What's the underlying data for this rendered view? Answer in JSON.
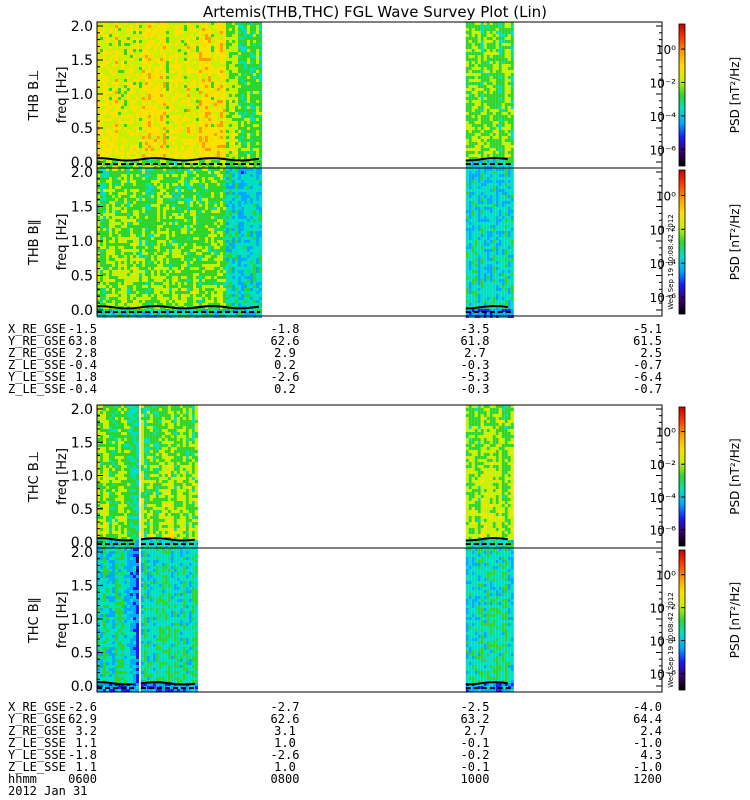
{
  "title": "Artemis(THB,THC) FGL Wave Survey Plot (Lin)",
  "stamp": "Wed Sep 19 00:08:42 2012",
  "colorbar": {
    "label": "PSD [nT²/Hz]",
    "tick_labels": [
      "10⁰",
      "10⁻²",
      "10⁻⁴",
      "10⁻⁶"
    ],
    "tick_exponents": [
      0,
      -2,
      -4,
      -6
    ],
    "range_exponent": [
      -7,
      1.5
    ],
    "colors": [
      "#000000",
      "#3a0070",
      "#1a1aff",
      "#00a8ff",
      "#00e0c0",
      "#2ed52e",
      "#c8f000",
      "#ffe000",
      "#ff9c00",
      "#ff3c00",
      "#c80000"
    ]
  },
  "chart_data": [
    {
      "type": "heatmap",
      "panel": "THB B⊥",
      "ylabel": "THB B⊥",
      "yunit": "freq [Hz]",
      "ylim": [
        0,
        2.0
      ],
      "yticks": [
        "0.0",
        "0.5",
        "1.0",
        "1.5",
        "2.0"
      ],
      "xlim_hhmm": [
        "0600",
        "1200"
      ],
      "data_intervals_hhmm": [
        [
          "0600",
          "0744"
        ],
        [
          "0955",
          "1025"
        ]
      ],
      "intensity_level": [
        6.8,
        5.4
      ]
    },
    {
      "type": "heatmap",
      "panel": "THB B∥",
      "ylabel": "THB B∥",
      "yunit": "freq [Hz]",
      "ylim": [
        0,
        2.0
      ],
      "yticks": [
        "0.0",
        "0.5",
        "1.0",
        "1.5",
        "2.0"
      ],
      "xlim_hhmm": [
        "0600",
        "1200"
      ],
      "data_intervals_hhmm": [
        [
          "0600",
          "0744"
        ],
        [
          "0955",
          "1025"
        ]
      ],
      "intensity_level": [
        5.5,
        4.0
      ]
    },
    {
      "type": "heatmap",
      "panel": "THC B⊥",
      "ylabel": "THC B⊥",
      "yunit": "freq [Hz]",
      "ylim": [
        0,
        2.0
      ],
      "yticks": [
        "0.0",
        "0.5",
        "1.0",
        "1.5",
        "2.0"
      ],
      "xlim_hhmm": [
        "0600",
        "1200"
      ],
      "data_intervals_hhmm": [
        [
          "0600",
          "0625"
        ],
        [
          "0628",
          "0704"
        ],
        [
          "0955",
          "1025"
        ]
      ],
      "intensity_level": [
        5.6,
        5.6,
        5.8
      ]
    },
    {
      "type": "heatmap",
      "panel": "THC B∥",
      "ylabel": "THC B∥",
      "yunit": "freq [Hz]",
      "ylim": [
        0,
        2.0
      ],
      "yticks": [
        "0.0",
        "0.5",
        "1.0",
        "1.5",
        "2.0"
      ],
      "xlim_hhmm": [
        "0600",
        "1200"
      ],
      "data_intervals_hhmm": [
        [
          "0600",
          "0625"
        ],
        [
          "0628",
          "0704"
        ],
        [
          "0955",
          "1025"
        ]
      ],
      "intensity_level": [
        4.3,
        4.3,
        4.3
      ]
    }
  ],
  "ephemeris_thb": {
    "rows": [
      {
        "label": "X_RE_GSE",
        "values": [
          "-1.5",
          "-1.8",
          "-3.5",
          "-5.1"
        ]
      },
      {
        "label": "Y_RE_GSE",
        "values": [
          "63.8",
          "62.6",
          "61.8",
          "61.5"
        ]
      },
      {
        "label": "Z_RE_GSE",
        "values": [
          "2.8",
          "2.9",
          "2.7",
          "2.5"
        ]
      },
      {
        "label": "Z_LE_SSE",
        "values": [
          "-0.4",
          "0.2",
          "-0.3",
          "-0.7"
        ]
      },
      {
        "label": "Y_LE_SSE",
        "values": [
          "1.8",
          "-2.6",
          "-5.3",
          "-6.4"
        ]
      },
      {
        "label": "Z_LE_SSE",
        "values": [
          "-0.4",
          "0.2",
          "-0.3",
          "-0.7"
        ]
      }
    ]
  },
  "ephemeris_thc": {
    "rows": [
      {
        "label": "X_RE_GSE",
        "values": [
          "-2.6",
          "-2.7",
          "-2.5",
          "-4.0"
        ]
      },
      {
        "label": "Y_RE_GSE",
        "values": [
          "62.9",
          "62.6",
          "63.2",
          "64.4"
        ]
      },
      {
        "label": "Z_RE_GSE",
        "values": [
          "3.2",
          "3.1",
          "2.7",
          "2.4"
        ]
      },
      {
        "label": "Z_LE_SSE",
        "values": [
          "1.1",
          "1.0",
          "-0.1",
          "-1.0"
        ]
      },
      {
        "label": "Y_LE_SSE",
        "values": [
          "-1.8",
          "-2.6",
          "-0.2",
          "4.3"
        ]
      },
      {
        "label": "Z_LE_SSE",
        "values": [
          "1.1",
          "1.0",
          "-0.1",
          "-1.0"
        ]
      },
      {
        "label": "hhmm",
        "values": [
          "0600",
          "0800",
          "1000",
          "1200"
        ]
      }
    ],
    "date": "2012 Jan 31"
  }
}
